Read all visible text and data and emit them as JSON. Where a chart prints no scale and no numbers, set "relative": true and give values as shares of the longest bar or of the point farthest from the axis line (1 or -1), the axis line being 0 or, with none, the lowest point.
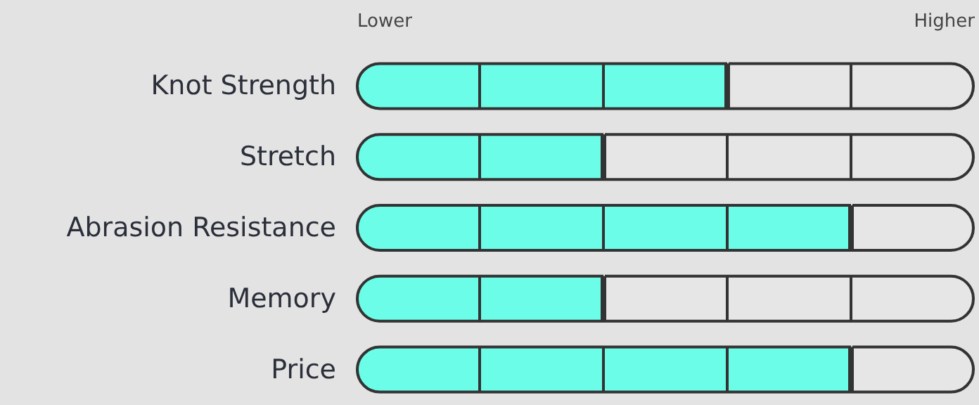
{
  "chart_data": {
    "type": "bar",
    "orientation": "horizontal",
    "relative": true,
    "stacked": true,
    "categories": [
      "Knot Strength",
      "Stretch",
      "Abrasion Resistance",
      "Memory",
      "Price"
    ],
    "series": [
      {
        "color": "#6cfde9",
        "values": [
          0.6,
          0.4,
          0.8,
          0.4,
          0.8
        ]
      },
      {
        "color": "#e6e6e6",
        "values": [
          0.4,
          0.6,
          0.2,
          0.6,
          0.2
        ]
      }
    ],
    "annotations": [
      "Lower",
      "Higher"
    ]
  }
}
